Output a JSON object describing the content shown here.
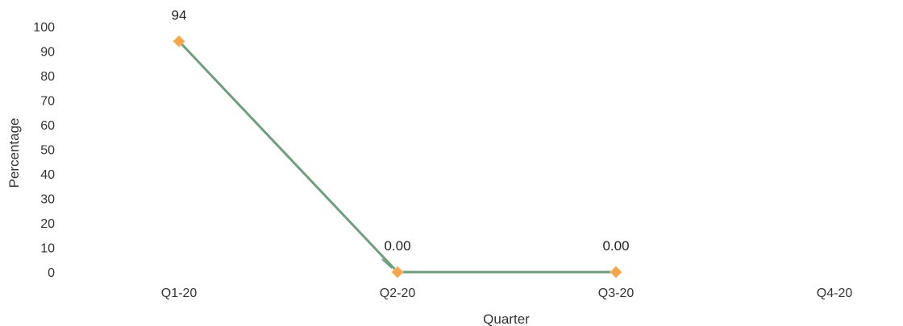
{
  "chart_data": {
    "type": "line",
    "title": "",
    "xlabel": "Quarter",
    "ylabel": "Percentage",
    "categories": [
      "Q1-20",
      "Q2-20",
      "Q3-20",
      "Q4-20"
    ],
    "ylim": [
      0,
      100
    ],
    "yticks": [
      "0",
      "10",
      "20",
      "30",
      "40",
      "50",
      "60",
      "70",
      "80",
      "90",
      "100"
    ],
    "grid": false,
    "legend": "none",
    "series": [
      {
        "values": [
          94,
          0,
          0,
          null
        ],
        "data_labels": [
          "94",
          "0.00",
          "0.00",
          ""
        ],
        "line_color": "#6f9e7e",
        "marker_color": "#f4a54a",
        "marker": "diamond"
      }
    ]
  }
}
